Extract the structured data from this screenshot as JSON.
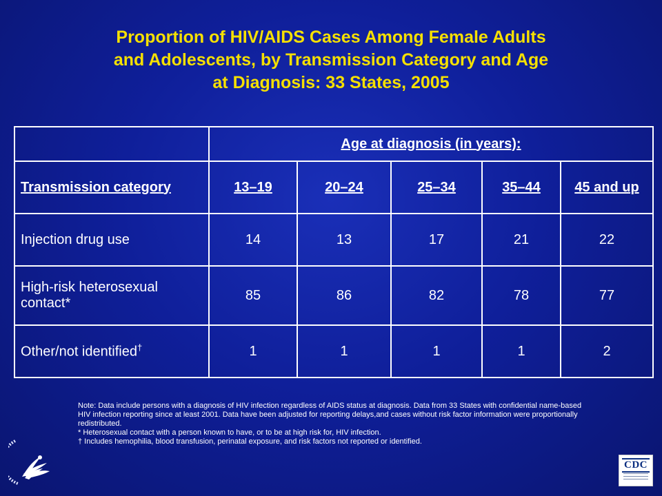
{
  "slide": {
    "title_lines": [
      "Proportion of HIV/AIDS Cases Among Female Adults",
      "and Adolescents, by Transmission Category and Age",
      "at Diagnosis: 33 States, 2005"
    ]
  },
  "table": {
    "group_header": "Age at diagnosis (in years):",
    "category_header": "Transmission category",
    "age_columns": [
      "13–19",
      "20–24",
      "25–34",
      "35–44",
      "45 and up"
    ],
    "rows": [
      {
        "category": "Injection drug use",
        "values": [
          "14",
          "13",
          "17",
          "21",
          "22"
        ]
      },
      {
        "category": "High-risk heterosexual contact*",
        "values": [
          "85",
          "86",
          "82",
          "78",
          "77"
        ]
      },
      {
        "category": "Other/not identified",
        "dagger": "†",
        "values": [
          "1",
          "1",
          "1",
          "1",
          "2"
        ]
      }
    ]
  },
  "notes": {
    "main": "Note: Data include persons with a diagnosis of HIV infection regardless of AIDS status at diagnosis. Data from 33 States with confidential name-based HIV infection reporting since at least 2001. Data have been adjusted for reporting delays,and cases without risk factor information were proportionally redistributed.",
    "asterisk": "* Heterosexual contact with a person known to have, or to be at high risk for, HIV infection.",
    "dagger": "† Includes hemophilia, blood transfusion, perinatal exposure, and risk factors not reported or identified."
  },
  "logos": {
    "left": "hhs-eagle-seal-icon",
    "right_text": "CDC"
  },
  "colors": {
    "title": "#f5e000",
    "background": "#1a2fb8",
    "text": "#ffffff"
  }
}
